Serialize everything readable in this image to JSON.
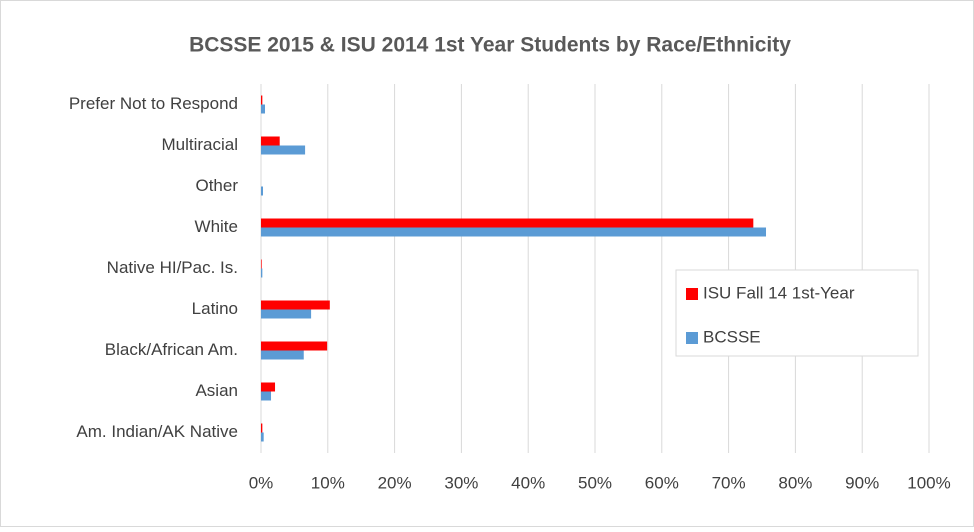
{
  "chart_data": {
    "type": "hbar",
    "title": "BCSSE 2015 & ISU 2014 1st Year Students by Race/Ethnicity",
    "categories": [
      "Am. Indian/AK Native",
      "Asian",
      "Black/African Am.",
      "Latino",
      "Native HI/Pac. Is.",
      "White",
      "Other",
      "Multiracial",
      "Prefer Not to Respond"
    ],
    "series": [
      {
        "name": "ISU Fall 14 1st-Year",
        "color": "#ff0000",
        "values": [
          0.2,
          2.1,
          9.9,
          10.3,
          0.1,
          73.7,
          0,
          2.8,
          0.2
        ]
      },
      {
        "name": "BCSSE",
        "color": "#5b9bd5",
        "values": [
          0.4,
          1.5,
          6.4,
          7.5,
          0.2,
          75.6,
          0.3,
          6.6,
          0.6
        ]
      }
    ],
    "xlim": [
      0,
      100
    ],
    "xticks": [
      {
        "value": 0,
        "label": "0%"
      },
      {
        "value": 10,
        "label": "10%"
      },
      {
        "value": 20,
        "label": "20%"
      },
      {
        "value": 30,
        "label": "30%"
      },
      {
        "value": 40,
        "label": "40%"
      },
      {
        "value": 50,
        "label": "50%"
      },
      {
        "value": 60,
        "label": "60%"
      },
      {
        "value": 70,
        "label": "70%"
      },
      {
        "value": 80,
        "label": "80%"
      },
      {
        "value": 90,
        "label": "90%"
      },
      {
        "value": 100,
        "label": "100%"
      }
    ],
    "grid": true,
    "legend_position": "right"
  }
}
